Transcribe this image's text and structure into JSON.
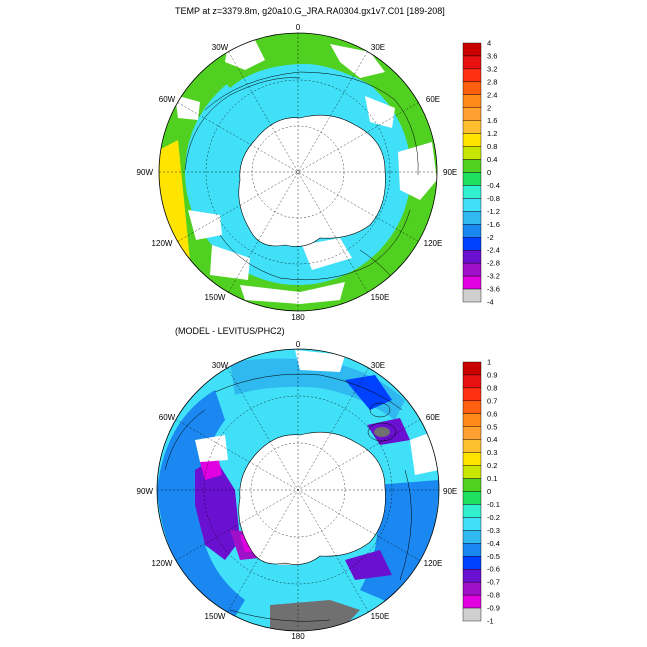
{
  "top": {
    "title": "TEMP at z=3379.8m, g20a10.G_JRA.RA0304.gx1v7.C01 [189-208]",
    "lon_labels": {
      "lon0": "0",
      "lon30e": "30E",
      "lon60e": "60E",
      "lon90e": "90E",
      "lon120e": "120E",
      "lon150e": "150E",
      "lon180": "180",
      "lon150w": "150W",
      "lon120w": "120W",
      "lon90w": "90W",
      "lon60w": "60W",
      "lon30w": "30W"
    },
    "colorbar": {
      "labels": [
        "4",
        "3.6",
        "3.2",
        "2.8",
        "2.4",
        "2",
        "1.6",
        "1.2",
        "0.8",
        "0.4",
        "0",
        "-0.4",
        "-0.8",
        "-1.2",
        "-1.6",
        "-2",
        "-2.4",
        "-2.8",
        "-3.2",
        "-3.6",
        "-4"
      ],
      "colors": [
        "#c80000",
        "#e81010",
        "#ff3010",
        "#ff6010",
        "#ff8a1a",
        "#ffa030",
        "#ffc030",
        "#ffe400",
        "#c8e600",
        "#50d020",
        "#20e060",
        "#30f0d0",
        "#40e0f8",
        "#30b8f0",
        "#1a88f0",
        "#0040ff",
        "#6a10d0",
        "#a010c8",
        "#e000e0",
        "#d0d0d0",
        "#707070"
      ]
    },
    "map": {
      "land": "#ffffff",
      "shelf": "#ffffff",
      "deep_water": "#40e0f8",
      "warm_sector": "#50d020",
      "yellow_sector": "#ffe400"
    }
  },
  "bottom": {
    "title": "(MODEL - LEVITUS/PHC2)",
    "lon_labels": {
      "lon0": "0",
      "lon30e": "30E",
      "lon60e": "60E",
      "lon90e": "90E",
      "lon120e": "120E",
      "lon150e": "150E",
      "lon180": "180",
      "lon150w": "150W",
      "lon120w": "120W",
      "lon90w": "90W",
      "lon60w": "60W",
      "lon30w": "30W"
    },
    "colorbar": {
      "labels": [
        "1",
        "0.9",
        "0.8",
        "0.7",
        "0.6",
        "0.5",
        "0.4",
        "0.3",
        "0.2",
        "0.1",
        "0",
        "-0.1",
        "-0.2",
        "-0.3",
        "-0.4",
        "-0.5",
        "-0.6",
        "-0.7",
        "-0.8",
        "-0.9",
        "-1"
      ],
      "colors": [
        "#c80000",
        "#e81010",
        "#ff3010",
        "#ff6010",
        "#ff8a1a",
        "#ffa030",
        "#ffc030",
        "#ffe400",
        "#c8e600",
        "#50d020",
        "#20e060",
        "#30f0d0",
        "#40e0f8",
        "#30b8f0",
        "#1a88f0",
        "#0040ff",
        "#6a10d0",
        "#a010c8",
        "#e000e0",
        "#d0d0d0",
        "#707070"
      ]
    },
    "map": {
      "land": "#ffffff",
      "cyan": "#40e0f8",
      "mid_blue": "#30b8f0",
      "blue": "#1a88f0",
      "deep_blue": "#0040ff",
      "purple": "#6a10d0",
      "violet": "#a010c8",
      "magenta": "#e000e0",
      "grey": "#d0d0d0",
      "dark_grey": "#707070"
    }
  }
}
